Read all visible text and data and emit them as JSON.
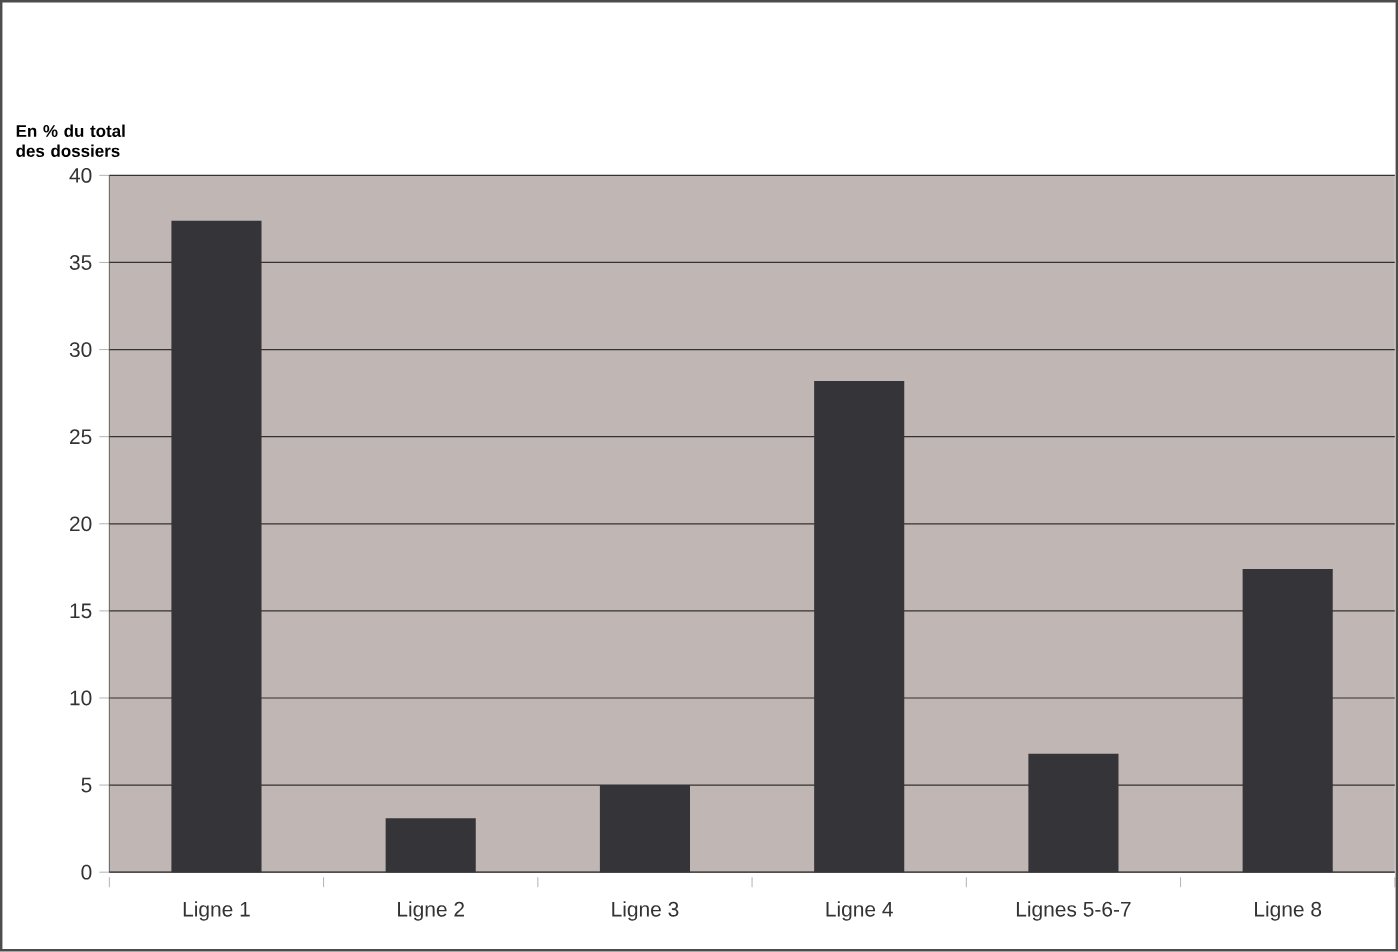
{
  "chart_data": {
    "type": "bar",
    "ylabel": "En % du total des dossiers",
    "categories": [
      "Ligne 1",
      "Ligne 2",
      "Ligne 3",
      "Ligne 4",
      "Lignes 5-6-7",
      "Ligne 8"
    ],
    "values": [
      37.4,
      3.1,
      5.0,
      28.2,
      6.8,
      17.4
    ],
    "color": "#353438",
    "ylim": [
      0,
      40
    ],
    "yticks": [
      0,
      5,
      10,
      15,
      20,
      25,
      30,
      35,
      40
    ],
    "grid": "y"
  }
}
